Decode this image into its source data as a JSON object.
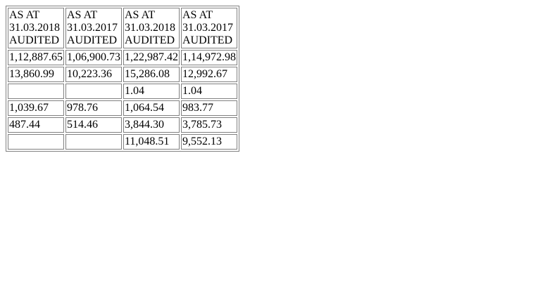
{
  "table": {
    "headers": [
      [
        "AS AT",
        "31.03.2018",
        "AUDITED"
      ],
      [
        "AS AT",
        "31.03.2017",
        "AUDITED"
      ],
      [
        "AS AT",
        "31.03.2018",
        "AUDITED"
      ],
      [
        "AS AT",
        "31.03.2017",
        "AUDITED"
      ]
    ],
    "rows": [
      [
        "1,12,887.65",
        "1,06,900.73",
        "1,22,987.42",
        "1,14,972.98"
      ],
      [
        "13,860.99",
        "10,223.36",
        "15,286.08",
        "12,992.67"
      ],
      [
        "",
        "",
        "1.04",
        "1.04"
      ],
      [
        "1,039.67",
        "978.76",
        "1,064.54",
        "983.77"
      ],
      [
        "487.44",
        "514.46",
        "3,844.30",
        "3,785.73"
      ],
      [
        "",
        "",
        "11,048.51",
        "9,552.13"
      ]
    ]
  }
}
